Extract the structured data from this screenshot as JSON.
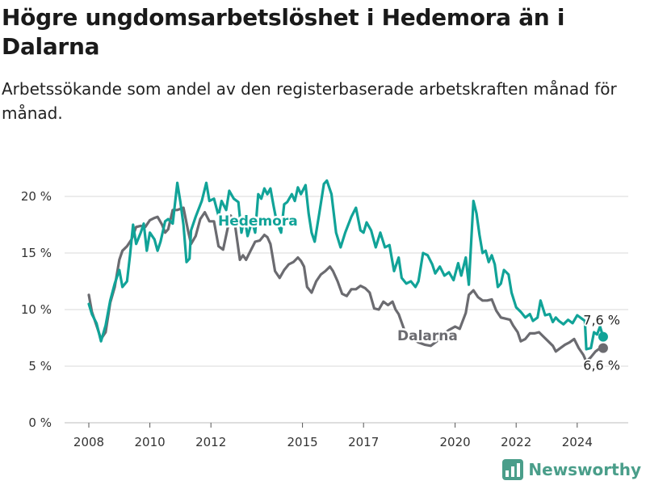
{
  "title": "Högre ungdomsarbetslöshet i Hedemora än i Dalarna",
  "subtitle": "Arbetssökande som andel av den registerbaserade arbetskraften månad för månad.",
  "brand": {
    "name": "Newsworthy",
    "icon": "bar-chart-logo-icon"
  },
  "colors": {
    "hedemora": "#11a398",
    "dalarna": "#6b6b70",
    "grid": "#d9d9d9"
  },
  "chart_data": {
    "type": "line",
    "title": "Högre ungdomsarbetslöshet i Hedemora än i Dalarna",
    "subtitle": "Arbetssökande som andel av den registerbaserade arbetskraften månad för månad.",
    "xlabel": "",
    "ylabel": "",
    "xlim": [
      2007.5,
      2025.5
    ],
    "ylim": [
      0,
      22
    ],
    "y_ticks": [
      0,
      5,
      10,
      15,
      20
    ],
    "y_tick_labels": [
      "0 %",
      "5 %",
      "10 %",
      "15 %",
      "20 %"
    ],
    "x_ticks": [
      2008,
      2010,
      2012,
      2015,
      2017,
      2020,
      2022,
      2024
    ],
    "x_tick_labels": [
      "2008",
      "2010",
      "2012",
      "2015",
      "2017",
      "2020",
      "2022",
      "2024"
    ],
    "grid": true,
    "legend": "none",
    "series": [
      {
        "name": "Hedemora",
        "end_value_label": "7,6 %",
        "points": [
          [
            2008.0,
            10.5
          ],
          [
            2008.1,
            9.6
          ],
          [
            2008.25,
            8.8
          ],
          [
            2008.4,
            7.2
          ],
          [
            2008.55,
            8.6
          ],
          [
            2008.7,
            10.8
          ],
          [
            2008.85,
            12.3
          ],
          [
            2009.0,
            13.5
          ],
          [
            2009.1,
            12.0
          ],
          [
            2009.25,
            12.5
          ],
          [
            2009.35,
            14.8
          ],
          [
            2009.45,
            17.5
          ],
          [
            2009.55,
            15.8
          ],
          [
            2009.7,
            16.8
          ],
          [
            2009.8,
            17.6
          ],
          [
            2009.9,
            15.2
          ],
          [
            2010.0,
            16.8
          ],
          [
            2010.15,
            16.2
          ],
          [
            2010.25,
            15.2
          ],
          [
            2010.35,
            16.0
          ],
          [
            2010.5,
            17.8
          ],
          [
            2010.6,
            18.0
          ],
          [
            2010.75,
            17.6
          ],
          [
            2010.9,
            21.2
          ],
          [
            2011.0,
            19.5
          ],
          [
            2011.1,
            17.5
          ],
          [
            2011.2,
            14.2
          ],
          [
            2011.3,
            14.5
          ],
          [
            2011.35,
            17.0
          ],
          [
            2011.5,
            18.2
          ],
          [
            2011.7,
            19.6
          ],
          [
            2011.85,
            21.2
          ],
          [
            2011.95,
            19.6
          ],
          [
            2012.1,
            19.8
          ],
          [
            2012.25,
            18.3
          ],
          [
            2012.35,
            19.6
          ],
          [
            2012.5,
            18.8
          ],
          [
            2012.6,
            20.5
          ],
          [
            2012.75,
            19.8
          ],
          [
            2012.9,
            19.5
          ],
          [
            2013.0,
            16.8
          ],
          [
            2013.1,
            18.2
          ],
          [
            2013.2,
            16.5
          ],
          [
            2013.35,
            17.8
          ],
          [
            2013.45,
            16.8
          ],
          [
            2013.55,
            20.2
          ],
          [
            2013.65,
            19.8
          ],
          [
            2013.75,
            20.7
          ],
          [
            2013.85,
            20.2
          ],
          [
            2013.95,
            20.7
          ],
          [
            2014.05,
            19.2
          ],
          [
            2014.15,
            17.8
          ],
          [
            2014.3,
            16.8
          ],
          [
            2014.4,
            19.3
          ],
          [
            2014.5,
            19.5
          ],
          [
            2014.65,
            20.2
          ],
          [
            2014.75,
            19.6
          ],
          [
            2014.85,
            20.8
          ],
          [
            2014.95,
            20.2
          ],
          [
            2015.1,
            21.0
          ],
          [
            2015.2,
            18.5
          ],
          [
            2015.3,
            16.8
          ],
          [
            2015.4,
            16.0
          ],
          [
            2015.55,
            18.5
          ],
          [
            2015.7,
            21.1
          ],
          [
            2015.8,
            21.4
          ],
          [
            2015.95,
            20.2
          ],
          [
            2016.1,
            16.8
          ],
          [
            2016.25,
            15.5
          ],
          [
            2016.4,
            16.8
          ],
          [
            2016.6,
            18.2
          ],
          [
            2016.75,
            19.0
          ],
          [
            2016.9,
            17.0
          ],
          [
            2017.0,
            16.8
          ],
          [
            2017.1,
            17.7
          ],
          [
            2017.25,
            17.0
          ],
          [
            2017.4,
            15.5
          ],
          [
            2017.55,
            16.8
          ],
          [
            2017.7,
            15.5
          ],
          [
            2017.85,
            15.7
          ],
          [
            2018.0,
            13.4
          ],
          [
            2018.15,
            14.6
          ],
          [
            2018.25,
            12.8
          ],
          [
            2018.4,
            12.3
          ],
          [
            2018.55,
            12.5
          ],
          [
            2018.7,
            12.0
          ],
          [
            2018.8,
            12.5
          ],
          [
            2018.95,
            15.0
          ],
          [
            2019.1,
            14.8
          ],
          [
            2019.25,
            14.0
          ],
          [
            2019.35,
            13.2
          ],
          [
            2019.5,
            13.8
          ],
          [
            2019.65,
            13.0
          ],
          [
            2019.8,
            13.3
          ],
          [
            2019.95,
            12.6
          ],
          [
            2020.1,
            14.1
          ],
          [
            2020.2,
            13.0
          ],
          [
            2020.35,
            14.6
          ],
          [
            2020.45,
            12.2
          ],
          [
            2020.6,
            19.6
          ],
          [
            2020.7,
            18.5
          ],
          [
            2020.8,
            16.6
          ],
          [
            2020.9,
            15.0
          ],
          [
            2021.0,
            15.2
          ],
          [
            2021.1,
            14.2
          ],
          [
            2021.2,
            14.8
          ],
          [
            2021.3,
            14.0
          ],
          [
            2021.4,
            12.0
          ],
          [
            2021.5,
            12.3
          ],
          [
            2021.6,
            13.5
          ],
          [
            2021.75,
            13.1
          ],
          [
            2021.85,
            11.5
          ],
          [
            2022.0,
            10.2
          ],
          [
            2022.15,
            9.8
          ],
          [
            2022.3,
            9.3
          ],
          [
            2022.45,
            9.6
          ],
          [
            2022.55,
            9.0
          ],
          [
            2022.7,
            9.3
          ],
          [
            2022.8,
            10.8
          ],
          [
            2022.95,
            9.5
          ],
          [
            2023.1,
            9.6
          ],
          [
            2023.2,
            8.9
          ],
          [
            2023.3,
            9.3
          ],
          [
            2023.4,
            9.0
          ],
          [
            2023.55,
            8.7
          ],
          [
            2023.7,
            9.1
          ],
          [
            2023.85,
            8.8
          ],
          [
            2024.0,
            9.5
          ],
          [
            2024.15,
            9.2
          ],
          [
            2024.25,
            9.0
          ],
          [
            2024.3,
            6.5
          ],
          [
            2024.45,
            6.6
          ],
          [
            2024.55,
            8.0
          ],
          [
            2024.65,
            7.8
          ],
          [
            2024.75,
            8.5
          ],
          [
            2024.85,
            7.6
          ]
        ]
      },
      {
        "name": "Dalarna",
        "end_value_label": "6,6 %",
        "points": [
          [
            2008.0,
            11.3
          ],
          [
            2008.1,
            9.8
          ],
          [
            2008.25,
            8.6
          ],
          [
            2008.4,
            7.4
          ],
          [
            2008.55,
            8.0
          ],
          [
            2008.7,
            10.6
          ],
          [
            2008.85,
            12.0
          ],
          [
            2009.0,
            14.4
          ],
          [
            2009.1,
            15.2
          ],
          [
            2009.25,
            15.6
          ],
          [
            2009.4,
            16.2
          ],
          [
            2009.55,
            17.3
          ],
          [
            2009.7,
            17.4
          ],
          [
            2009.85,
            17.3
          ],
          [
            2010.0,
            17.9
          ],
          [
            2010.15,
            18.1
          ],
          [
            2010.25,
            18.2
          ],
          [
            2010.4,
            17.5
          ],
          [
            2010.5,
            16.8
          ],
          [
            2010.6,
            17.1
          ],
          [
            2010.75,
            18.8
          ],
          [
            2010.9,
            18.8
          ],
          [
            2011.1,
            19.0
          ],
          [
            2011.25,
            17.0
          ],
          [
            2011.35,
            15.8
          ],
          [
            2011.5,
            16.5
          ],
          [
            2011.65,
            18.0
          ],
          [
            2011.8,
            18.6
          ],
          [
            2011.95,
            17.8
          ],
          [
            2012.1,
            17.8
          ],
          [
            2012.25,
            15.6
          ],
          [
            2012.4,
            15.3
          ],
          [
            2012.55,
            17.2
          ],
          [
            2012.65,
            18.3
          ],
          [
            2012.8,
            17.3
          ],
          [
            2012.95,
            14.4
          ],
          [
            2013.05,
            14.8
          ],
          [
            2013.15,
            14.4
          ],
          [
            2013.3,
            15.2
          ],
          [
            2013.45,
            16.0
          ],
          [
            2013.6,
            16.1
          ],
          [
            2013.75,
            16.6
          ],
          [
            2013.85,
            16.4
          ],
          [
            2013.95,
            15.8
          ],
          [
            2014.1,
            13.4
          ],
          [
            2014.25,
            12.8
          ],
          [
            2014.4,
            13.5
          ],
          [
            2014.55,
            14.0
          ],
          [
            2014.7,
            14.2
          ],
          [
            2014.85,
            14.6
          ],
          [
            2014.95,
            14.3
          ],
          [
            2015.05,
            13.8
          ],
          [
            2015.15,
            12.0
          ],
          [
            2015.3,
            11.5
          ],
          [
            2015.45,
            12.5
          ],
          [
            2015.6,
            13.1
          ],
          [
            2015.75,
            13.4
          ],
          [
            2015.9,
            13.8
          ],
          [
            2016.0,
            13.4
          ],
          [
            2016.15,
            12.5
          ],
          [
            2016.3,
            11.4
          ],
          [
            2016.45,
            11.2
          ],
          [
            2016.6,
            11.8
          ],
          [
            2016.75,
            11.8
          ],
          [
            2016.9,
            12.1
          ],
          [
            2017.05,
            11.9
          ],
          [
            2017.2,
            11.5
          ],
          [
            2017.35,
            10.1
          ],
          [
            2017.5,
            10.0
          ],
          [
            2017.65,
            10.7
          ],
          [
            2017.8,
            10.4
          ],
          [
            2017.95,
            10.7
          ],
          [
            2018.05,
            10.0
          ],
          [
            2018.15,
            9.6
          ],
          [
            2018.35,
            8.1
          ],
          [
            2018.6,
            7.4
          ],
          [
            2018.8,
            7.1
          ],
          [
            2019.0,
            6.9
          ],
          [
            2019.2,
            6.8
          ],
          [
            2019.4,
            7.2
          ],
          [
            2019.6,
            7.8
          ],
          [
            2019.8,
            8.2
          ],
          [
            2020.0,
            8.5
          ],
          [
            2020.15,
            8.3
          ],
          [
            2020.35,
            9.7
          ],
          [
            2020.45,
            11.3
          ],
          [
            2020.6,
            11.7
          ],
          [
            2020.75,
            11.1
          ],
          [
            2020.9,
            10.8
          ],
          [
            2021.05,
            10.8
          ],
          [
            2021.2,
            10.9
          ],
          [
            2021.35,
            9.9
          ],
          [
            2021.5,
            9.3
          ],
          [
            2021.65,
            9.2
          ],
          [
            2021.8,
            9.1
          ],
          [
            2021.9,
            8.6
          ],
          [
            2022.05,
            8.0
          ],
          [
            2022.15,
            7.2
          ],
          [
            2022.3,
            7.4
          ],
          [
            2022.45,
            7.9
          ],
          [
            2022.6,
            7.9
          ],
          [
            2022.75,
            8.0
          ],
          [
            2022.9,
            7.6
          ],
          [
            2023.05,
            7.2
          ],
          [
            2023.2,
            6.8
          ],
          [
            2023.3,
            6.3
          ],
          [
            2023.45,
            6.6
          ],
          [
            2023.6,
            6.9
          ],
          [
            2023.75,
            7.1
          ],
          [
            2023.9,
            7.4
          ],
          [
            2024.05,
            6.6
          ],
          [
            2024.2,
            6.0
          ],
          [
            2024.3,
            5.4
          ],
          [
            2024.45,
            5.8
          ],
          [
            2024.6,
            6.3
          ],
          [
            2024.75,
            6.6
          ],
          [
            2024.85,
            6.6
          ]
        ]
      }
    ]
  }
}
